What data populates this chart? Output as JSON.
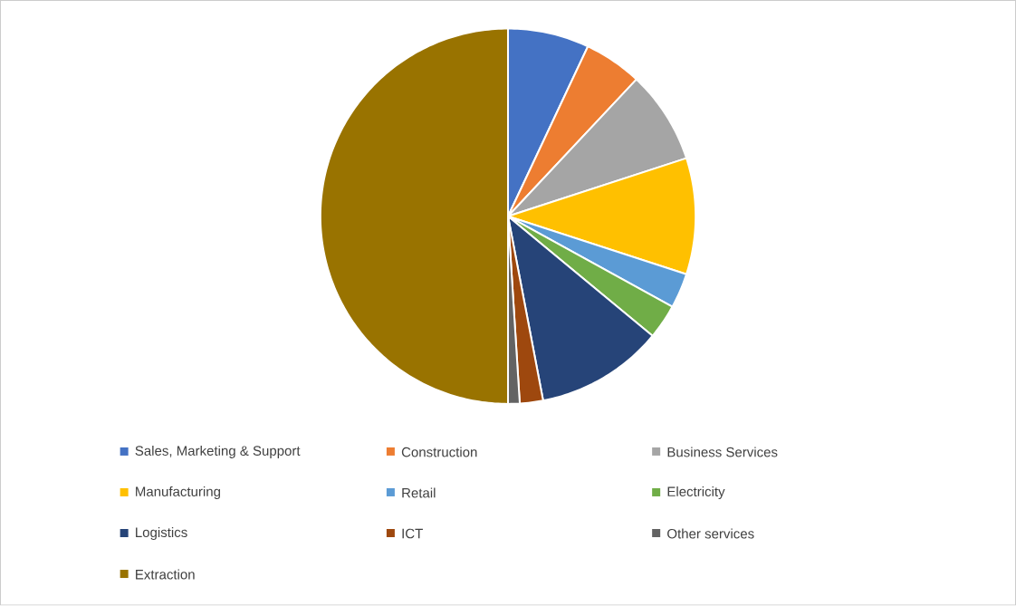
{
  "chart_data": {
    "type": "pie",
    "categories": [
      "Sales, Marketing & Support",
      "Construction",
      "Business Services",
      "Manufacturing",
      "Retail",
      "Electricity",
      "Logistics",
      "ICT",
      "Other services",
      "Extraction"
    ],
    "values": [
      7,
      5,
      8,
      10,
      3,
      3,
      11,
      2,
      1,
      50
    ],
    "colors": [
      "#4472c4",
      "#ed7d31",
      "#a5a5a5",
      "#ffc000",
      "#5b9bd5",
      "#70ad47",
      "#264478",
      "#9e480e",
      "#636363",
      "#997300"
    ],
    "legend": "bottom"
  }
}
